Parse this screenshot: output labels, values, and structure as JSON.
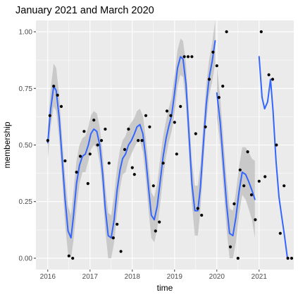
{
  "chart_data": {
    "type": "scatter",
    "title": "January 2021 and March 2020",
    "xlabel": "time",
    "ylabel": "membership",
    "xlim": [
      2015.72,
      2021.82
    ],
    "ylim": [
      -0.05,
      1.05
    ],
    "grid": true,
    "panel_background": "#ebebeb",
    "point_color": "#000000",
    "line_color": "#3366ff",
    "band_color": "#bebebe",
    "x_ticks": [
      {
        "value": 2016,
        "label": "2016"
      },
      {
        "value": 2017,
        "label": "2017"
      },
      {
        "value": 2018,
        "label": "2018"
      },
      {
        "value": 2019,
        "label": "2019"
      },
      {
        "value": 2020,
        "label": "2020"
      },
      {
        "value": 2021,
        "label": "2021"
      }
    ],
    "y_ticks": [
      {
        "value": 0.0,
        "label": "0.00"
      },
      {
        "value": 0.25,
        "label": "0.25"
      },
      {
        "value": 0.5,
        "label": "0.50"
      },
      {
        "value": 0.75,
        "label": "0.75"
      },
      {
        "value": 1.0,
        "label": "1.00"
      }
    ],
    "points": [
      {
        "x": 2016.0,
        "y": 0.52
      },
      {
        "x": 2016.05,
        "y": 0.63
      },
      {
        "x": 2016.14,
        "y": 0.76
      },
      {
        "x": 2016.23,
        "y": 0.72
      },
      {
        "x": 2016.32,
        "y": 0.67
      },
      {
        "x": 2016.41,
        "y": 0.43
      },
      {
        "x": 2016.5,
        "y": 0.01
      },
      {
        "x": 2016.59,
        "y": 0.0
      },
      {
        "x": 2016.68,
        "y": 0.38
      },
      {
        "x": 2016.77,
        "y": 0.45
      },
      {
        "x": 2016.86,
        "y": 0.56
      },
      {
        "x": 2016.95,
        "y": 0.33
      },
      {
        "x": 2017.0,
        "y": 0.46
      },
      {
        "x": 2017.09,
        "y": 0.61
      },
      {
        "x": 2017.18,
        "y": 0.5
      },
      {
        "x": 2017.27,
        "y": 0.52
      },
      {
        "x": 2017.36,
        "y": 0.57
      },
      {
        "x": 2017.45,
        "y": 0.42
      },
      {
        "x": 2017.55,
        "y": 0.09
      },
      {
        "x": 2017.64,
        "y": 0.15
      },
      {
        "x": 2017.73,
        "y": 0.03
      },
      {
        "x": 2017.82,
        "y": 0.48
      },
      {
        "x": 2017.91,
        "y": 0.57
      },
      {
        "x": 2018.0,
        "y": 0.4
      },
      {
        "x": 2018.05,
        "y": 0.37
      },
      {
        "x": 2018.14,
        "y": 0.52
      },
      {
        "x": 2018.23,
        "y": 0.52
      },
      {
        "x": 2018.32,
        "y": 0.63
      },
      {
        "x": 2018.41,
        "y": 0.58
      },
      {
        "x": 2018.5,
        "y": 0.32
      },
      {
        "x": 2018.55,
        "y": 0.12
      },
      {
        "x": 2018.64,
        "y": 0.16
      },
      {
        "x": 2018.73,
        "y": 0.42
      },
      {
        "x": 2018.82,
        "y": 0.65
      },
      {
        "x": 2018.91,
        "y": 0.63
      },
      {
        "x": 2019.0,
        "y": 0.6
      },
      {
        "x": 2019.05,
        "y": 0.46
      },
      {
        "x": 2019.14,
        "y": 0.67
      },
      {
        "x": 2019.23,
        "y": 0.89
      },
      {
        "x": 2019.32,
        "y": 0.89
      },
      {
        "x": 2019.41,
        "y": 0.89
      },
      {
        "x": 2019.5,
        "y": 0.55
      },
      {
        "x": 2019.55,
        "y": 0.22
      },
      {
        "x": 2019.64,
        "y": 0.19
      },
      {
        "x": 2019.73,
        "y": 0.58
      },
      {
        "x": 2019.82,
        "y": 0.79
      },
      {
        "x": 2019.91,
        "y": 0.91
      },
      {
        "x": 2020.0,
        "y": 0.85
      },
      {
        "x": 2020.05,
        "y": 0.71
      },
      {
        "x": 2020.14,
        "y": 0.76
      },
      {
        "x": 2020.23,
        "y": 1.0
      },
      {
        "x": 2020.32,
        "y": 0.05
      },
      {
        "x": 2020.41,
        "y": 0.24
      },
      {
        "x": 2020.5,
        "y": 0.0
      },
      {
        "x": 2020.55,
        "y": 0.39
      },
      {
        "x": 2020.64,
        "y": 0.32
      },
      {
        "x": 2020.73,
        "y": 0.47
      },
      {
        "x": 2020.82,
        "y": 0.28
      },
      {
        "x": 2020.91,
        "y": 0.17
      },
      {
        "x": 2021.0,
        "y": 0.34
      },
      {
        "x": 2021.05,
        "y": 1.0
      },
      {
        "x": 2021.14,
        "y": 0.36
      },
      {
        "x": 2021.23,
        "y": 0.81
      },
      {
        "x": 2021.32,
        "y": 0.79
      },
      {
        "x": 2021.41,
        "y": 0.5
      },
      {
        "x": 2021.5,
        "y": 0.11
      },
      {
        "x": 2021.59,
        "y": 0.32
      },
      {
        "x": 2021.68,
        "y": 0.0
      },
      {
        "x": 2021.77,
        "y": 0.0
      }
    ],
    "smooth_segments": [
      {
        "x": [
          2016.0,
          2016.07,
          2016.14,
          2016.2,
          2016.27,
          2016.34,
          2016.41,
          2016.48,
          2016.55,
          2016.61,
          2016.68,
          2016.75,
          2016.82,
          2016.89,
          2016.96,
          2017.02,
          2017.09,
          2017.16,
          2017.23,
          2017.3,
          2017.36,
          2017.43,
          2017.5,
          2017.57,
          2017.64,
          2017.71,
          2017.77,
          2017.84,
          2017.91,
          2017.98,
          2018.05,
          2018.11,
          2018.18,
          2018.25,
          2018.32,
          2018.39,
          2018.45,
          2018.52,
          2018.59,
          2018.66,
          2018.73,
          2018.8,
          2018.86,
          2018.93,
          2019.0,
          2019.07,
          2019.14,
          2019.2,
          2019.27,
          2019.34,
          2019.41,
          2019.48,
          2019.55,
          2019.61,
          2019.68,
          2019.75,
          2019.82,
          2019.89,
          2019.96
        ],
        "y": [
          0.51,
          0.66,
          0.76,
          0.74,
          0.62,
          0.44,
          0.26,
          0.12,
          0.09,
          0.19,
          0.33,
          0.41,
          0.45,
          0.46,
          0.5,
          0.55,
          0.57,
          0.56,
          0.5,
          0.37,
          0.22,
          0.1,
          0.09,
          0.17,
          0.3,
          0.39,
          0.44,
          0.46,
          0.5,
          0.52,
          0.55,
          0.58,
          0.59,
          0.55,
          0.44,
          0.3,
          0.19,
          0.17,
          0.23,
          0.34,
          0.45,
          0.53,
          0.58,
          0.63,
          0.73,
          0.84,
          0.89,
          0.88,
          0.77,
          0.55,
          0.33,
          0.21,
          0.21,
          0.31,
          0.5,
          0.68,
          0.8,
          0.87,
          0.96
        ],
        "lower": [
          0.44,
          0.58,
          0.67,
          0.65,
          0.53,
          0.35,
          0.15,
          0.02,
          0.0,
          0.08,
          0.22,
          0.33,
          0.38,
          0.38,
          0.43,
          0.48,
          0.5,
          0.49,
          0.42,
          0.29,
          0.12,
          0.0,
          0.0,
          0.07,
          0.2,
          0.31,
          0.37,
          0.38,
          0.43,
          0.46,
          0.49,
          0.51,
          0.52,
          0.47,
          0.35,
          0.2,
          0.09,
          0.07,
          0.13,
          0.24,
          0.36,
          0.45,
          0.51,
          0.56,
          0.64,
          0.76,
          0.81,
          0.8,
          0.68,
          0.46,
          0.24,
          0.1,
          0.1,
          0.21,
          0.41,
          0.6,
          0.72,
          0.78,
          0.86
        ],
        "upper": [
          0.58,
          0.75,
          0.86,
          0.84,
          0.72,
          0.53,
          0.36,
          0.23,
          0.19,
          0.3,
          0.43,
          0.5,
          0.53,
          0.54,
          0.58,
          0.63,
          0.65,
          0.64,
          0.58,
          0.46,
          0.32,
          0.2,
          0.19,
          0.28,
          0.4,
          0.48,
          0.52,
          0.54,
          0.58,
          0.6,
          0.62,
          0.65,
          0.66,
          0.63,
          0.53,
          0.4,
          0.29,
          0.27,
          0.33,
          0.44,
          0.54,
          0.61,
          0.66,
          0.71,
          0.81,
          0.92,
          0.97,
          0.96,
          0.86,
          0.64,
          0.43,
          0.32,
          0.32,
          0.41,
          0.59,
          0.77,
          0.88,
          0.95,
          1.05
        ]
      },
      {
        "x": [
          2020.0,
          2020.08,
          2020.15,
          2020.23,
          2020.3,
          2020.38,
          2020.45,
          2020.53,
          2020.6,
          2020.68,
          2020.75,
          2020.83,
          2020.9
        ],
        "y": [
          0.73,
          0.6,
          0.43,
          0.24,
          0.11,
          0.1,
          0.18,
          0.3,
          0.38,
          0.37,
          0.34,
          0.3,
          0.26
        ],
        "lower": [
          0.62,
          0.5,
          0.33,
          0.13,
          0.0,
          0.0,
          0.07,
          0.2,
          0.28,
          0.26,
          0.22,
          0.17,
          0.09
        ],
        "upper": [
          0.85,
          0.71,
          0.54,
          0.35,
          0.22,
          0.21,
          0.29,
          0.41,
          0.49,
          0.49,
          0.47,
          0.44,
          0.43
        ]
      },
      {
        "x": [
          2021.0,
          2021.07,
          2021.13,
          2021.2,
          2021.27,
          2021.33,
          2021.4,
          2021.47,
          2021.53,
          2021.6,
          2021.67
        ],
        "y": [
          0.89,
          0.71,
          0.66,
          0.69,
          0.79,
          0.65,
          0.43,
          0.27,
          0.19,
          0.1,
          0.0
        ],
        "lower": [
          0.89,
          0.71,
          0.66,
          0.69,
          0.79,
          0.65,
          0.43,
          0.27,
          0.19,
          0.1,
          0.0
        ],
        "upper": [
          0.89,
          0.71,
          0.66,
          0.69,
          0.79,
          0.65,
          0.43,
          0.27,
          0.19,
          0.1,
          0.0
        ]
      }
    ]
  }
}
